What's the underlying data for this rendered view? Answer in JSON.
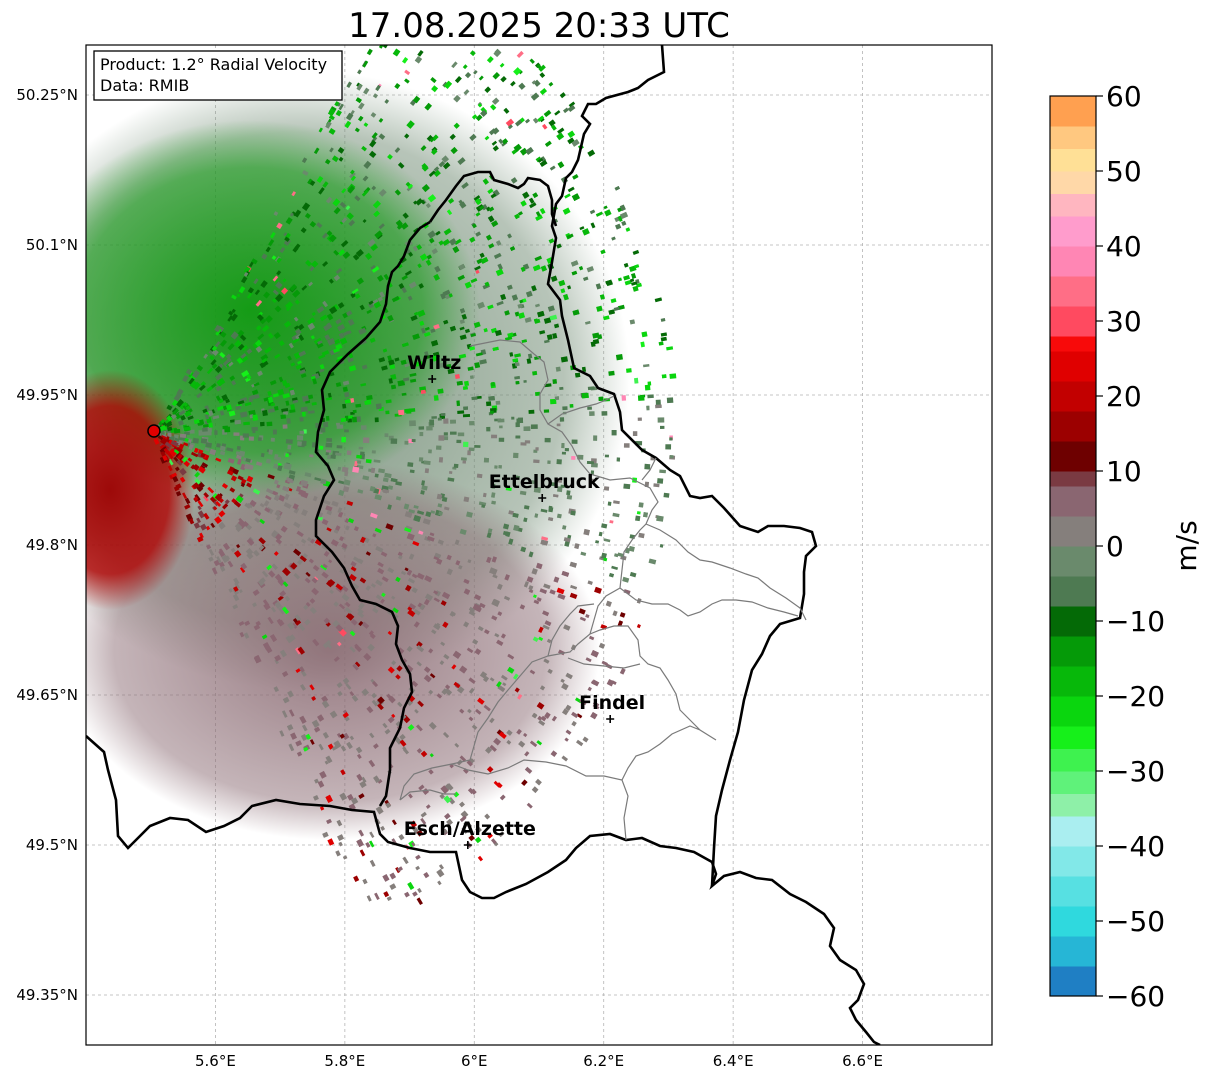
{
  "title": "17.08.2025 20:33 UTC",
  "info": {
    "product": "Product: 1.2° Radial Velocity",
    "data_source": "Data: RMIB"
  },
  "axes": {
    "lon_range": [
      5.4,
      6.8
    ],
    "lat_range": [
      49.3,
      50.3
    ],
    "x_ticks": [
      {
        "value": 5.6,
        "label": "5.6°E"
      },
      {
        "value": 5.8,
        "label": "5.8°E"
      },
      {
        "value": 6.0,
        "label": "6°E"
      },
      {
        "value": 6.2,
        "label": "6.2°E"
      },
      {
        "value": 6.4,
        "label": "6.4°E"
      },
      {
        "value": 6.6,
        "label": "6.6°E"
      }
    ],
    "y_ticks": [
      {
        "value": 50.25,
        "label": "50.25°N"
      },
      {
        "value": 50.1,
        "label": "50.1°N"
      },
      {
        "value": 49.95,
        "label": "49.95°N"
      },
      {
        "value": 49.8,
        "label": "49.8°N"
      },
      {
        "value": 49.65,
        "label": "49.65°N"
      },
      {
        "value": 49.5,
        "label": "49.5°N"
      },
      {
        "value": 49.35,
        "label": "49.35°N"
      }
    ],
    "grid": true
  },
  "cities": [
    {
      "name": "Wiltz",
      "lon": 5.935,
      "lat": 49.966
    },
    {
      "name": "Ettelbruck",
      "lon": 6.105,
      "lat": 49.847
    },
    {
      "name": "Findel",
      "lon": 6.21,
      "lat": 49.626
    },
    {
      "name": "Esch/Alzette",
      "lon": 5.99,
      "lat": 49.5
    }
  ],
  "radar_site": {
    "lon": 5.505,
    "lat": 49.914
  },
  "colorbar": {
    "label": "m/s",
    "min": -60,
    "max": 60,
    "ticks": [
      {
        "value": 60,
        "label": "60"
      },
      {
        "value": 50,
        "label": "50"
      },
      {
        "value": 40,
        "label": "40"
      },
      {
        "value": 30,
        "label": "30"
      },
      {
        "value": 20,
        "label": "20"
      },
      {
        "value": 10,
        "label": "10"
      },
      {
        "value": 0,
        "label": "0"
      },
      {
        "value": -10,
        "label": "−10"
      },
      {
        "value": -20,
        "label": "−20"
      },
      {
        "value": -30,
        "label": "−30"
      },
      {
        "value": -40,
        "label": "−40"
      },
      {
        "value": -50,
        "label": "−50"
      },
      {
        "value": -60,
        "label": "−60"
      }
    ],
    "stops": [
      {
        "from": -60,
        "to": -56,
        "color": "#1f7fc4"
      },
      {
        "from": -56,
        "to": -52,
        "color": "#26b6d6"
      },
      {
        "from": -52,
        "to": -48,
        "color": "#2fd9de"
      },
      {
        "from": -48,
        "to": -44,
        "color": "#57e0e2"
      },
      {
        "from": -44,
        "to": -40,
        "color": "#82e8e8"
      },
      {
        "from": -40,
        "to": -36,
        "color": "#aaeef0"
      },
      {
        "from": -36,
        "to": -33,
        "color": "#8ef0a8"
      },
      {
        "from": -33,
        "to": -30,
        "color": "#5ff27a"
      },
      {
        "from": -30,
        "to": -27,
        "color": "#3ef24f"
      },
      {
        "from": -27,
        "to": -24,
        "color": "#16f01a"
      },
      {
        "from": -24,
        "to": -20,
        "color": "#0ad60e"
      },
      {
        "from": -20,
        "to": -16,
        "color": "#07b80a"
      },
      {
        "from": -16,
        "to": -12,
        "color": "#059a08"
      },
      {
        "from": -12,
        "to": -8,
        "color": "#046a06"
      },
      {
        "from": -8,
        "to": -4,
        "color": "#4e7a52"
      },
      {
        "from": -4,
        "to": 0,
        "color": "#6a8a6c"
      },
      {
        "from": 0,
        "to": 4,
        "color": "#857f7c"
      },
      {
        "from": 4,
        "to": 8,
        "color": "#8a6671"
      },
      {
        "from": 8,
        "to": 10,
        "color": "#7a3a42"
      },
      {
        "from": 10,
        "to": 14,
        "color": "#6e0000"
      },
      {
        "from": 14,
        "to": 18,
        "color": "#9c0000"
      },
      {
        "from": 18,
        "to": 22,
        "color": "#c20000"
      },
      {
        "from": 22,
        "to": 26,
        "color": "#e00000"
      },
      {
        "from": 26,
        "to": 28,
        "color": "#f80a0a"
      },
      {
        "from": 28,
        "to": 32,
        "color": "#ff4a60"
      },
      {
        "from": 32,
        "to": 36,
        "color": "#ff6e86"
      },
      {
        "from": 36,
        "to": 40,
        "color": "#ff86b4"
      },
      {
        "from": 40,
        "to": 44,
        "color": "#ff9ccc"
      },
      {
        "from": 44,
        "to": 47,
        "color": "#ffb6c0"
      },
      {
        "from": 47,
        "to": 50,
        "color": "#ffd8a8"
      },
      {
        "from": 50,
        "to": 53,
        "color": "#ffe096"
      },
      {
        "from": 53,
        "to": 56,
        "color": "#ffc880"
      },
      {
        "from": 56,
        "to": 60,
        "color": "#ffa050"
      }
    ]
  }
}
